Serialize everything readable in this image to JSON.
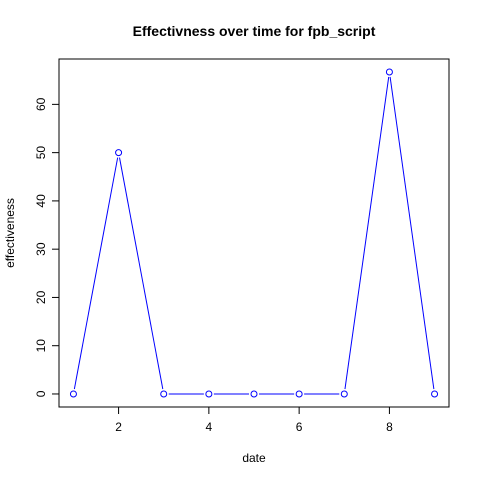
{
  "chart_data": {
    "type": "line",
    "title": "Effectivness over time for fpb_script",
    "xlabel": "date",
    "ylabel": "effectiveness",
    "x": [
      1,
      2,
      3,
      4,
      5,
      6,
      7,
      8,
      9
    ],
    "series": [
      {
        "values": [
          0,
          50,
          0,
          0,
          0,
          0,
          0,
          66.7,
          0
        ]
      }
    ],
    "xlim": [
      0.68,
      9.32
    ],
    "ylim": [
      -2.7,
      69.4
    ],
    "xticks": [
      2,
      4,
      6,
      8
    ],
    "yticks": [
      0,
      10,
      20,
      30,
      40,
      50,
      60
    ],
    "grid": false,
    "legend": "none",
    "colors": {
      "series": "#0000ff",
      "axes": "#000000"
    },
    "markers": "open-circle"
  }
}
